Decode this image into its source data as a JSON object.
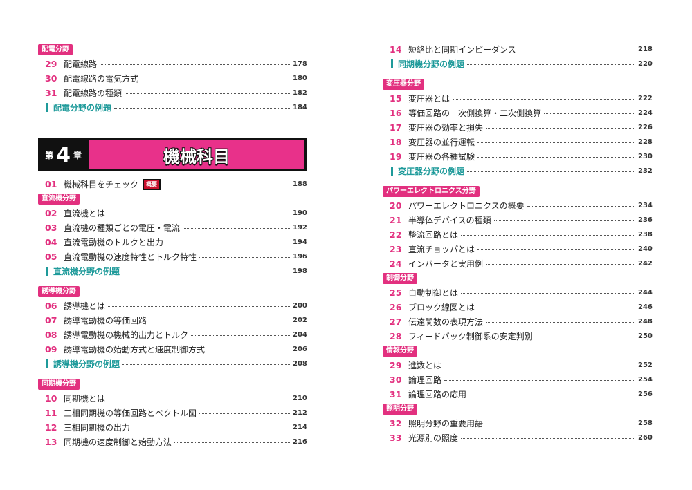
{
  "left": {
    "items": [
      {
        "tag": "配電分野"
      },
      {
        "number": "29",
        "title": "配電線路",
        "page": 178
      },
      {
        "number": "30",
        "title": "配電線路の電気方式",
        "page": 180
      },
      {
        "number": "31",
        "title": "配電線路の種類",
        "page": 182
      },
      {
        "example": "配電分野の例題",
        "page": 184
      },
      {
        "chapter": {
          "prefix": "第",
          "number": "4",
          "suffix": "章",
          "title": "機械科目"
        }
      },
      {
        "number": "01",
        "title": "機械科目をチェック",
        "badge": "概要",
        "page": 188
      },
      {
        "tag": "直流機分野"
      },
      {
        "number": "02",
        "title": "直流機とは",
        "page": 190
      },
      {
        "number": "03",
        "title": "直流機の種類ごとの電圧・電流",
        "page": 192
      },
      {
        "number": "04",
        "title": "直流電動機のトルクと出力",
        "page": 194
      },
      {
        "number": "05",
        "title": "直流電動機の速度特性とトルク特性",
        "page": 196
      },
      {
        "example": "直流機分野の例題",
        "page": 198
      },
      {
        "tag": "誘導機分野"
      },
      {
        "number": "06",
        "title": "誘導機とは",
        "page": 200
      },
      {
        "number": "07",
        "title": "誘導電動機の等価回路",
        "page": 202
      },
      {
        "number": "08",
        "title": "誘導電動機の機械的出力とトルク",
        "page": 204
      },
      {
        "number": "09",
        "title": "誘導電動機の始動方式と速度制御方式",
        "page": 206
      },
      {
        "example": "誘導機分野の例題",
        "page": 208
      },
      {
        "tag": "同期機分野"
      },
      {
        "number": "10",
        "title": "同期機とは",
        "page": 210
      },
      {
        "number": "11",
        "title": "三相同期機の等価回路とベクトル図",
        "page": 212
      },
      {
        "number": "12",
        "title": "三相同期機の出力",
        "page": 214
      },
      {
        "number": "13",
        "title": "同期機の速度制御と始動方法",
        "page": 216
      }
    ]
  },
  "right": {
    "items": [
      {
        "number": "14",
        "title": "短絡比と同期インピーダンス",
        "page": 218
      },
      {
        "example": "同期機分野の例題",
        "page": 220
      },
      {
        "tag": "変圧器分野"
      },
      {
        "number": "15",
        "title": "変圧器とは",
        "page": 222
      },
      {
        "number": "16",
        "title": "等価回路の一次側換算・二次側換算",
        "page": 224
      },
      {
        "number": "17",
        "title": "変圧器の効率と損失",
        "page": 226
      },
      {
        "number": "18",
        "title": "変圧器の並行運転",
        "page": 228
      },
      {
        "number": "19",
        "title": "変圧器の各種試験",
        "page": 230
      },
      {
        "example": "変圧器分野の例題",
        "page": 232
      },
      {
        "tag": "パワーエレクトロニクス分野"
      },
      {
        "number": "20",
        "title": "パワーエレクトロニクスの概要",
        "page": 234
      },
      {
        "number": "21",
        "title": "半導体デバイスの種類",
        "page": 236
      },
      {
        "number": "22",
        "title": "整流回路とは",
        "page": 238
      },
      {
        "number": "23",
        "title": "直流チョッパとは",
        "page": 240
      },
      {
        "number": "24",
        "title": "インバータと実用例",
        "page": 242
      },
      {
        "tag": "制御分野"
      },
      {
        "number": "25",
        "title": "自動制御とは",
        "page": 244
      },
      {
        "number": "26",
        "title": "ブロック線図とは",
        "page": 246
      },
      {
        "number": "27",
        "title": "伝達関数の表現方法",
        "page": 248
      },
      {
        "number": "28",
        "title": "フィードバック制御系の安定判別",
        "page": 250
      },
      {
        "tag": "情報分野"
      },
      {
        "number": "29",
        "title": "進数とは",
        "page": 252
      },
      {
        "number": "30",
        "title": "論理回路",
        "page": 254
      },
      {
        "number": "31",
        "title": "論理回路の応用",
        "page": 256
      },
      {
        "tag": "照明分野"
      },
      {
        "number": "32",
        "title": "照明分野の重要用語",
        "page": 258
      },
      {
        "number": "33",
        "title": "光源別の照度",
        "page": 260
      }
    ]
  }
}
